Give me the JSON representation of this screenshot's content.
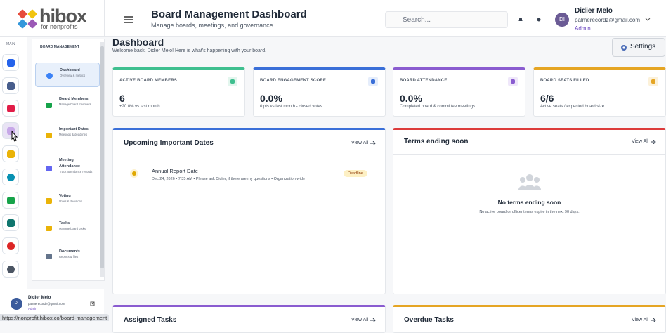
{
  "logo": {
    "name": "hibox",
    "tagline": "for nonprofits"
  },
  "header": {
    "title": "Board Management Dashboard",
    "subtitle": "Manage boards, meetings, and governance",
    "search_placeholder": "Search...",
    "user": {
      "initials": "DI",
      "name": "Didier Melo",
      "email": "palmerecordz@gmail.com",
      "role": "Admin"
    }
  },
  "rail": {
    "label": "MAIN"
  },
  "sidebar": {
    "section": "BOARD MANAGEMENT",
    "items": [
      {
        "title": "Dashboard",
        "desc": "Overview & metrics"
      },
      {
        "title": "Board Members",
        "desc": "Manage board members"
      },
      {
        "title": "Important Dates",
        "desc": "Meetings & deadlines"
      },
      {
        "title": "Meeting Attendance",
        "desc": "Track attendance records"
      },
      {
        "title": "Voting",
        "desc": "Votes & decisions"
      },
      {
        "title": "Tasks",
        "desc": "Manage board tasks"
      },
      {
        "title": "Documents",
        "desc": "Reports & files"
      }
    ]
  },
  "status_url": "https://nonprofit.hibox.co/board-management",
  "page": {
    "title": "Dashboard",
    "welcome": "Welcome back, Didier Melo! Here is what's happening with your board.",
    "settings": "Settings"
  },
  "stats": [
    {
      "label": "ACTIVE BOARD MEMBERS",
      "value": "6",
      "note": "+20.0% vs last month"
    },
    {
      "label": "BOARD ENGAGEMENT SCORE",
      "value": "0.0%",
      "note": "0 pts vs last month - closed votes"
    },
    {
      "label": "BOARD ATTENDANCE",
      "value": "0.0%",
      "note": "Completed board & committee meetings"
    },
    {
      "label": "BOARD SEATS FILLED",
      "value": "6/6",
      "note": "Active seats / expected board size"
    }
  ],
  "panels": {
    "upcoming": {
      "title": "Upcoming Important Dates",
      "view_all": "View All",
      "events": [
        {
          "title": "Annual Report Date",
          "detail": "Dec 24, 2026 • 7:35 AM • Please ask Didier, if there are my questions • Organization-wide",
          "badge": "Deadline"
        }
      ]
    },
    "terms": {
      "title": "Terms ending soon",
      "view_all": "View All",
      "empty_title": "No terms ending soon",
      "empty_text": "No active board or officer terms expire in the next 90 days."
    },
    "assigned": {
      "title": "Assigned Tasks",
      "view_all": "View All"
    },
    "overdue": {
      "title": "Overdue Tasks",
      "view_all": "View All"
    }
  }
}
